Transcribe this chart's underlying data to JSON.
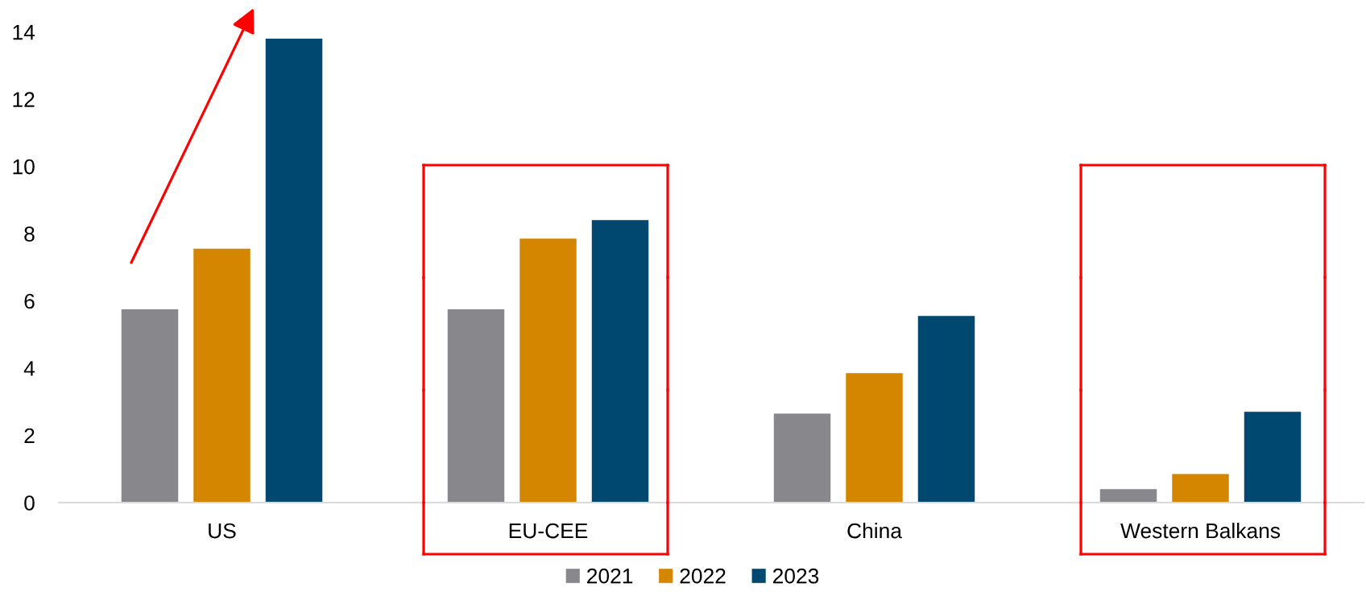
{
  "chart_data": {
    "type": "bar",
    "categories": [
      "US",
      "EU-CEE",
      "China",
      "Western Balkans"
    ],
    "series": [
      {
        "name": "2021",
        "color": "#88878c",
        "values": [
          5.75,
          5.75,
          2.65,
          0.4
        ]
      },
      {
        "name": "2022",
        "color": "#d48600",
        "values": [
          7.55,
          7.85,
          3.85,
          0.85
        ]
      },
      {
        "name": "2023",
        "color": "#004870",
        "values": [
          13.8,
          8.4,
          5.55,
          2.7
        ]
      }
    ],
    "ylim": [
      0,
      14
    ],
    "yticks": [
      0,
      2,
      4,
      6,
      8,
      10,
      12,
      14
    ],
    "legend": "bottom"
  }
}
